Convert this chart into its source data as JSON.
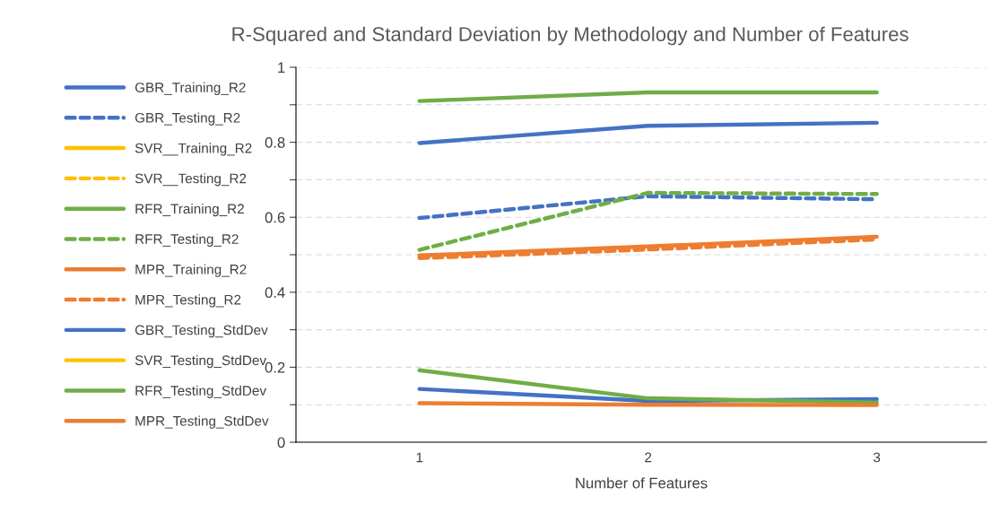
{
  "chart_data": {
    "type": "line",
    "title": "R-Squared and Standard Deviation by Methodology and Number of Features",
    "xlabel": "Number of Features",
    "categories": [
      "1",
      "2",
      "3"
    ],
    "series": [
      {
        "name": "GBR_Training_R2",
        "color": "#4472c4",
        "line_style": "solid",
        "values": [
          0.798,
          0.844,
          0.852
        ]
      },
      {
        "name": "GBR_Testing_R2",
        "color": "#4472c4",
        "line_style": "dashed",
        "values": [
          0.598,
          0.656,
          0.648
        ]
      },
      {
        "name": "SVR__Training_R2",
        "color": "#ffc000",
        "line_style": "solid",
        "values": [
          null,
          null,
          null
        ]
      },
      {
        "name": "SVR__Testing_R2",
        "color": "#ffc000",
        "line_style": "dashed",
        "values": [
          null,
          null,
          null
        ]
      },
      {
        "name": "RFR_Training_R2",
        "color": "#70ad47",
        "line_style": "solid",
        "values": [
          0.91,
          0.933,
          0.933
        ]
      },
      {
        "name": "RFR_Testing_R2",
        "color": "#70ad47",
        "line_style": "dashed",
        "values": [
          0.513,
          0.665,
          0.662
        ]
      },
      {
        "name": "MPR_Training_R2",
        "color": "#ed7d31",
        "line_style": "solid",
        "values": [
          0.498,
          0.522,
          0.548
        ]
      },
      {
        "name": "MPR_Testing_R2",
        "color": "#ed7d31",
        "line_style": "dashed",
        "values": [
          0.491,
          0.514,
          0.541
        ]
      },
      {
        "name": "GBR_Testing_StdDev",
        "color": "#4472c4",
        "line_style": "solid",
        "values": [
          0.142,
          0.11,
          0.115
        ]
      },
      {
        "name": "SVR_Testing_StdDev",
        "color": "#ffc000",
        "line_style": "solid",
        "values": [
          null,
          null,
          null
        ]
      },
      {
        "name": "RFR_Testing_StdDev",
        "color": "#70ad47",
        "line_style": "solid",
        "values": [
          0.192,
          0.117,
          0.106
        ]
      },
      {
        "name": "MPR_Testing_StdDev",
        "color": "#ed7d31",
        "line_style": "solid",
        "values": [
          0.104,
          0.1,
          0.099
        ]
      }
    ],
    "ylim": [
      0,
      1
    ],
    "yticks": [
      0,
      {
        "value": 0.1,
        "label": null
      },
      0.2,
      {
        "value": 0.3,
        "label": null
      },
      0.4,
      {
        "value": 0.5,
        "label": null
      },
      0.6,
      {
        "value": 0.7,
        "label": null
      },
      0.8,
      {
        "value": 0.9,
        "label": null
      },
      1
    ],
    "grid": "y",
    "legend": "left"
  }
}
